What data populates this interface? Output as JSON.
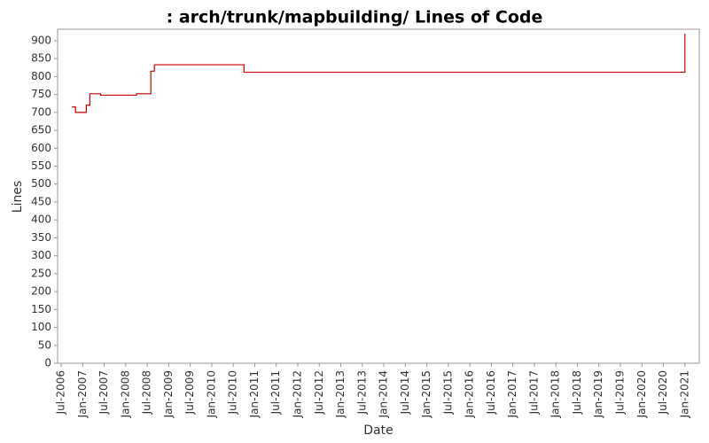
{
  "chart_data": {
    "type": "step-line",
    "title": ": arch/trunk/mapbuilding/ Lines of Code",
    "x_label": "Date",
    "y_label": "Lines",
    "x": [
      "2006-10",
      "2006-11",
      "2007-02",
      "2007-03",
      "2007-06",
      "2008-04",
      "2008-08",
      "2008-09",
      "2010-10",
      "2021-01"
    ],
    "series": [
      {
        "name": "Lines",
        "color": "#cc0000",
        "values": [
          715,
          700,
          720,
          752,
          748,
          752,
          815,
          833,
          812,
          920
        ]
      }
    ],
    "xlim": [
      "2006-06",
      "2021-05"
    ],
    "xticks": [
      {
        "value": "2006-07",
        "label": "Jul-2006"
      },
      {
        "value": "2007-01",
        "label": "Jan-2007"
      },
      {
        "value": "2007-07",
        "label": "Jul-2007"
      },
      {
        "value": "2008-01",
        "label": "Jan-2008"
      },
      {
        "value": "2008-07",
        "label": "Jul-2008"
      },
      {
        "value": "2009-01",
        "label": "Jan-2009"
      },
      {
        "value": "2009-07",
        "label": "Jul-2009"
      },
      {
        "value": "2010-01",
        "label": "Jan-2010"
      },
      {
        "value": "2010-07",
        "label": "Jul-2010"
      },
      {
        "value": "2011-01",
        "label": "Jan-2011"
      },
      {
        "value": "2011-07",
        "label": "Jul-2011"
      },
      {
        "value": "2012-01",
        "label": "Jan-2012"
      },
      {
        "value": "2012-07",
        "label": "Jul-2012"
      },
      {
        "value": "2013-01",
        "label": "Jan-2013"
      },
      {
        "value": "2013-07",
        "label": "Jul-2013"
      },
      {
        "value": "2014-01",
        "label": "Jan-2014"
      },
      {
        "value": "2014-07",
        "label": "Jul-2014"
      },
      {
        "value": "2015-01",
        "label": "Jan-2015"
      },
      {
        "value": "2015-07",
        "label": "Jul-2015"
      },
      {
        "value": "2016-01",
        "label": "Jan-2016"
      },
      {
        "value": "2016-07",
        "label": "Jul-2016"
      },
      {
        "value": "2017-01",
        "label": "Jan-2017"
      },
      {
        "value": "2017-07",
        "label": "Jul-2017"
      },
      {
        "value": "2018-01",
        "label": "Jan-2018"
      },
      {
        "value": "2018-07",
        "label": "Jul-2018"
      },
      {
        "value": "2019-01",
        "label": "Jan-2019"
      },
      {
        "value": "2019-07",
        "label": "Jul-2019"
      },
      {
        "value": "2020-01",
        "label": "Jan-2020"
      },
      {
        "value": "2020-07",
        "label": "Jul-2020"
      },
      {
        "value": "2021-01",
        "label": "Jan-2021"
      }
    ],
    "ylim": [
      0,
      932
    ],
    "yticks": [
      0,
      50,
      100,
      150,
      200,
      250,
      300,
      350,
      400,
      450,
      500,
      550,
      600,
      650,
      700,
      750,
      800,
      850,
      900
    ],
    "grid": false
  }
}
